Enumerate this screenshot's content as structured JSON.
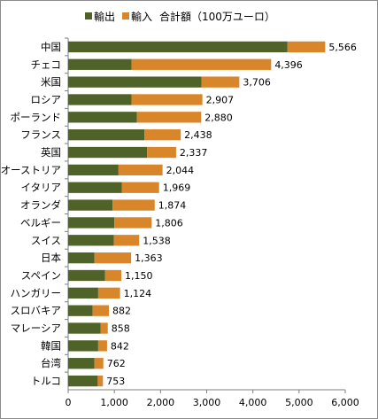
{
  "chart_data": {
    "type": "bar",
    "orientation": "horizontal",
    "stacked": true,
    "legend_position": "top",
    "total_label": "合計額（100万ユーロ）",
    "categories": [
      "中国",
      "チェコ",
      "米国",
      "ロシア",
      "ポーランド",
      "フランス",
      "英国",
      "オーストリア",
      "イタリア",
      "オランダ",
      "ベルギー",
      "スイス",
      "日本",
      "スペイン",
      "ハンガリー",
      "スロバキア",
      "マレーシア",
      "韓国",
      "台湾",
      "トルコ"
    ],
    "series": [
      {
        "name": "輸出",
        "color": "#4f6228",
        "values": [
          4750,
          1370,
          2890,
          1370,
          1490,
          1650,
          1710,
          1090,
          1160,
          960,
          1000,
          990,
          570,
          800,
          650,
          530,
          700,
          650,
          570,
          640
        ]
      },
      {
        "name": "輸入",
        "color": "#d9862a",
        "values": [
          816,
          3026,
          816,
          1537,
          1390,
          788,
          627,
          954,
          809,
          914,
          806,
          548,
          793,
          350,
          474,
          352,
          158,
          192,
          192,
          113
        ]
      }
    ],
    "totals": [
      5566,
      4396,
      3706,
      2907,
      2880,
      2438,
      2337,
      2044,
      1969,
      1874,
      1806,
      1538,
      1363,
      1150,
      1124,
      882,
      858,
      842,
      762,
      753
    ],
    "total_labels": [
      "5,566",
      "4,396",
      "3,706",
      "2,907",
      "2,880",
      "2,438",
      "2,337",
      "2,044",
      "1,969",
      "1,874",
      "1,806",
      "1,538",
      "1,363",
      "1,150",
      "1,124",
      "882",
      "858",
      "842",
      "762",
      "753"
    ],
    "xlim": [
      0,
      6000
    ],
    "x_ticks": [
      0,
      1000,
      2000,
      3000,
      4000,
      5000,
      6000
    ],
    "x_tick_labels": [
      "0",
      "1,000",
      "2,000",
      "3,000",
      "4,000",
      "5,000",
      "6,000"
    ],
    "grid": false
  }
}
